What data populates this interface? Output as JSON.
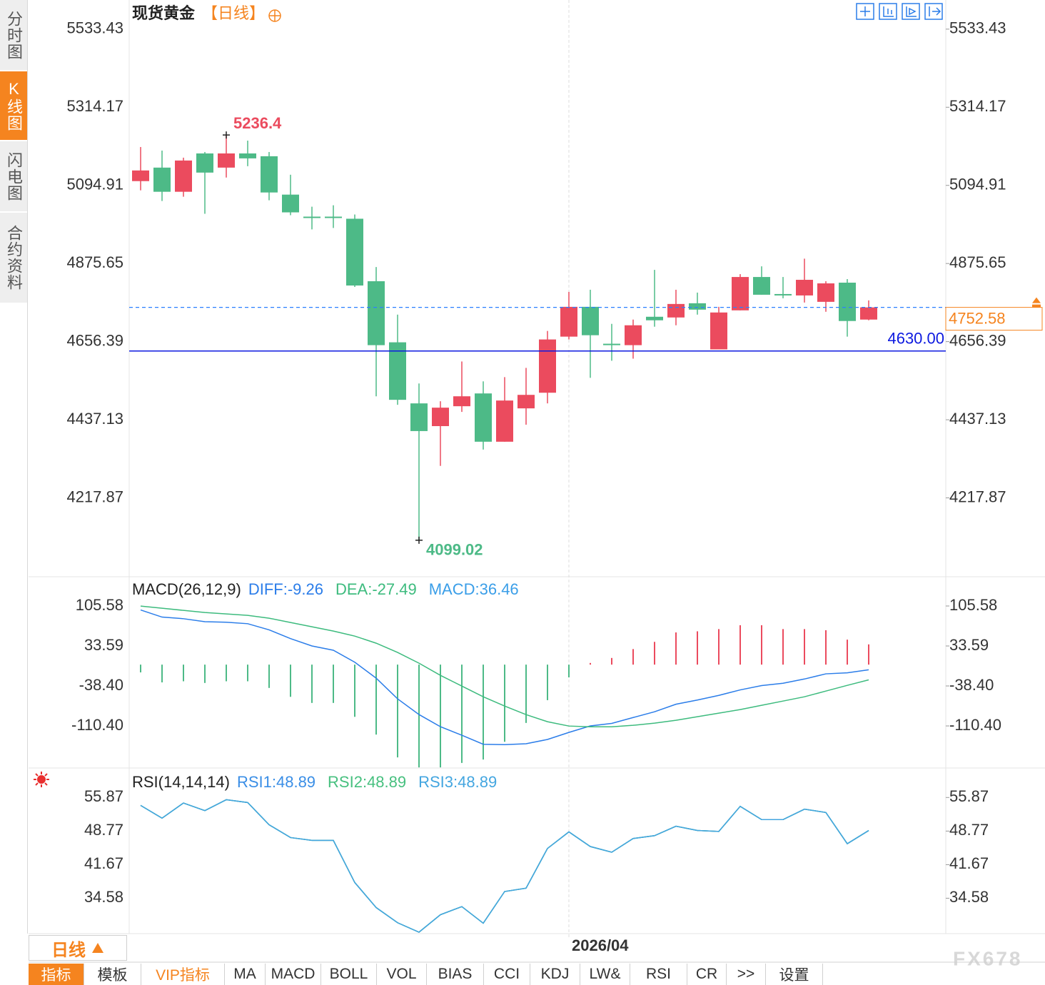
{
  "ui": {
    "sidebar": [
      "分时图",
      "K线图",
      "闪电图",
      "合约资料"
    ],
    "title": "现货黄金",
    "period_tag": "【日线】",
    "period": "日线",
    "toolbar": [
      "指标",
      "模板",
      "VIP指标",
      "MA",
      "MACD",
      "BOLL",
      "VOL",
      "BIAS",
      "CCI",
      "KDJ",
      "LW&",
      "RSI",
      "CR",
      ">>",
      "设置"
    ],
    "watermark": "FX678"
  },
  "chart_data": [
    {
      "type": "candlestick",
      "categories": [
        null,
        null,
        null,
        null,
        null,
        null,
        null,
        null,
        null,
        null,
        null,
        null,
        null,
        null,
        null,
        null,
        null,
        null,
        null,
        null,
        "2026/04",
        null,
        null,
        null,
        null,
        null,
        null,
        null,
        null,
        null,
        null,
        null,
        null,
        null,
        null
      ],
      "open": [
        5106.9,
        5144.8,
        5077.0,
        5184.6,
        5144.8,
        5184.6,
        5176.7,
        5069.0,
        5007.2,
        5007.2,
        5001.3,
        4825.9,
        4654.5,
        4483.1,
        4419.3,
        4475.1,
        4511.0,
        4375.5,
        4469.1,
        4513.0,
        4670.4,
        4754.1,
        4650.5,
        4646.5,
        4726.2,
        4724.2,
        4764.1,
        4634.6,
        4744.2,
        4837.8,
        4790.0,
        4786.0,
        4768.1,
        4821.9,
        4718.3
      ],
      "high": [
        5202.6,
        5192.6,
        5172.7,
        5188.6,
        5236.4,
        5220.5,
        5188.6,
        5124.8,
        5035.1,
        5039.1,
        5013.2,
        4865.7,
        4732.2,
        4538.9,
        4489.1,
        4600.7,
        4544.9,
        4556.8,
        4582.7,
        4686.4,
        4796.0,
        4802.0,
        4706.3,
        4718.3,
        4857.8,
        4802.0,
        4794.0,
        4754.1,
        4845.8,
        4867.7,
        4837.8,
        4889.24,
        4825.9,
        4831.9,
        4772.1
      ],
      "low": [
        5081.0,
        5051.1,
        5063.1,
        5015.2,
        5116.9,
        5148.8,
        5053.1,
        5011.2,
        4971.4,
        4975.4,
        4809.9,
        4503.0,
        4479.1,
        4099.02,
        4307.7,
        4459.2,
        4353.5,
        4375.5,
        4423.3,
        4483.1,
        4662.5,
        4554.8,
        4602.7,
        4608.6,
        4698.3,
        4702.3,
        4732.2,
        4634.6,
        4744.2,
        4788.0,
        4778.1,
        4766.1,
        4740.2,
        4670.4,
        4716.3
      ],
      "close": [
        5136.8,
        5077.0,
        5164.7,
        5130.8,
        5184.6,
        5170.7,
        5075.0,
        5019.2,
        5003.3,
        5003.3,
        4813.9,
        4646.5,
        4493.1,
        4405.4,
        4471.1,
        4503.0,
        4375.5,
        4491.1,
        4507.0,
        4662.5,
        4754.1,
        4674.4,
        4646.5,
        4702.3,
        4716.3,
        4762.1,
        4746.2,
        4738.2,
        4837.8,
        4788.0,
        4786.0,
        4829.9,
        4819.9,
        4714.3,
        4752.58
      ],
      "up_color": "#eb4b5e",
      "down_color": "#4dba87",
      "ylim": [
        3996.6,
        5615.2
      ],
      "yticks": [
        5533.43,
        5314.17,
        5094.91,
        4875.65,
        4656.39,
        4437.13,
        4217.87
      ],
      "hline": {
        "value": 4630,
        "label": "4630.00",
        "color": "#0d1ae0"
      },
      "last_color": "#f5841f",
      "last_line_color": "#2a7fff"
    },
    {
      "type": "macd",
      "title": "MACD(26,12,9)",
      "ylim": [
        -186.2,
        158.3
      ],
      "yticks": [
        105.58,
        33.59,
        {
          "value": -38.4,
          "label": "-38.40"
        },
        {
          "value": -110.4,
          "label": "-110.40"
        }
      ],
      "up_color": "#eb4b5e",
      "down_color": "#4dba87",
      "series": [
        {
          "name": "DIFF:-9.26",
          "color": "#2b7de9",
          "type": "line",
          "values": [
            98.4,
            85.6,
            82.7,
            77.3,
            76.3,
            73.7,
            62.6,
            46.9,
            33.6,
            25.9,
            4.4,
            -24.4,
            -61.6,
            -89.9,
            -111.8,
            -127.1,
            -143.4,
            -144.1,
            -142.5,
            -134.8,
            -122.1,
            -110.4,
            -105.9,
            -95.3,
            -84.9,
            -71.3,
            -63.8,
            -55.4,
            -45.5,
            -37.8,
            -33.6,
            -25.9,
            -16.6,
            -14.8,
            -9.26
          ]
        },
        {
          "name": "DEA:-27.49",
          "color": "#3dbb7e",
          "type": "line",
          "values": [
            105.4,
            101.6,
            97.7,
            93.8,
            91.3,
            88.7,
            83.6,
            75.9,
            68.1,
            60.4,
            51.4,
            38.6,
            21.9,
            2.6,
            -19.3,
            -38.6,
            -57.9,
            -74.6,
            -90.0,
            -102.8,
            -110.6,
            -111.9,
            -111.9,
            -109.3,
            -105.4,
            -100.3,
            -93.8,
            -87.4,
            -81.0,
            -73.3,
            -65.6,
            -57.9,
            -47.6,
            -37.3,
            -27.49
          ]
        },
        {
          "name": "MACD:36.46",
          "color": "#3a9ee8",
          "type": "bar",
          "values": [
            -14,
            -32,
            -30,
            -33,
            -30,
            -30,
            -42,
            -58,
            -69,
            -69,
            -94,
            -126,
            -167,
            -185,
            -185,
            -177,
            -171,
            -139,
            -105,
            -64,
            -23,
            3,
            12,
            28,
            41,
            58,
            60,
            64,
            71,
            71,
            64,
            64,
            62,
            45,
            36.46
          ]
        }
      ]
    },
    {
      "type": "line",
      "title": "RSI(14,14,14)",
      "ylim": [
        27.1,
        62.1
      ],
      "yticks": [
        55.87,
        48.77,
        41.67,
        34.58
      ],
      "series": [
        {
          "name": "RSI1:48.89",
          "color": "#3a8ee6",
          "values": [
            54.2,
            51.5,
            54.7,
            53.1,
            55.4,
            54.8,
            50.1,
            47.4,
            46.8,
            46.8,
            37.9,
            32.6,
            29.4,
            27.4,
            31.1,
            32.8,
            29.3,
            36.0,
            36.7,
            45.1,
            48.6,
            45.5,
            44.3,
            47.2,
            47.8,
            49.8,
            48.9,
            48.7,
            54.0,
            51.2,
            51.2,
            53.4,
            52.7,
            46.1,
            48.89
          ]
        },
        {
          "name": "RSI2:48.89",
          "color": "#47c07f",
          "values": [
            54.2,
            51.5,
            54.7,
            53.1,
            55.4,
            54.8,
            50.1,
            47.4,
            46.8,
            46.8,
            37.9,
            32.6,
            29.4,
            27.4,
            31.1,
            32.8,
            29.3,
            36.0,
            36.7,
            45.1,
            48.6,
            45.5,
            44.3,
            47.2,
            47.8,
            49.8,
            48.9,
            48.7,
            54.0,
            51.2,
            51.2,
            53.4,
            52.7,
            46.1,
            48.89
          ]
        },
        {
          "name": "RSI3:48.89",
          "color": "#44a6e0",
          "values": [
            54.2,
            51.5,
            54.7,
            53.1,
            55.4,
            54.8,
            50.1,
            47.4,
            46.8,
            46.8,
            37.9,
            32.6,
            29.4,
            27.4,
            31.1,
            32.8,
            29.3,
            36.0,
            36.7,
            45.1,
            48.6,
            45.5,
            44.3,
            47.2,
            47.8,
            49.8,
            48.9,
            48.7,
            54.0,
            51.2,
            51.2,
            53.4,
            52.7,
            46.1,
            48.89
          ]
        }
      ]
    }
  ]
}
